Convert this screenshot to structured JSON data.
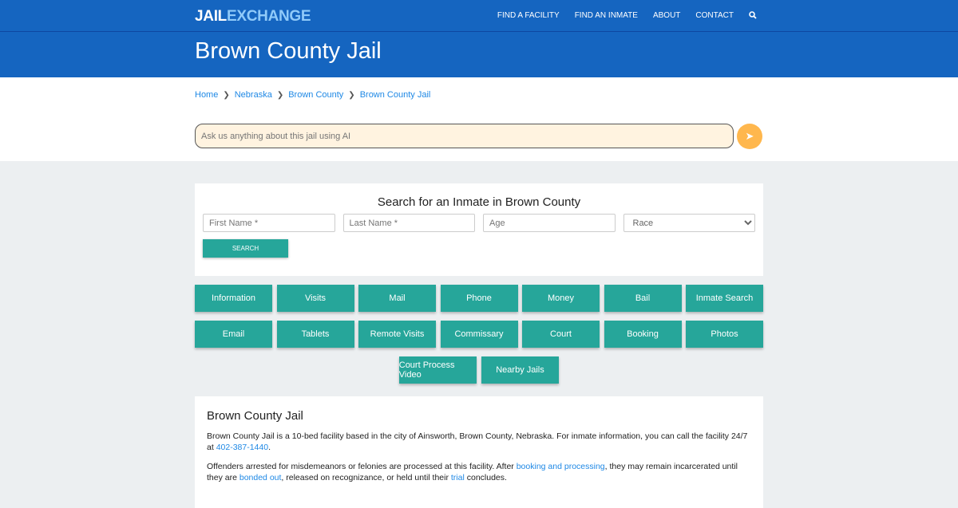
{
  "nav": {
    "logo_a": "JAIL",
    "logo_b": "EXCHANGE",
    "items": [
      "FIND A FACILITY",
      "FIND AN INMATE",
      "ABOUT",
      "CONTACT"
    ],
    "search_icon": "search-icon"
  },
  "hero": {
    "title": "Brown County Jail"
  },
  "breadcrumb": [
    "Home",
    "Nebraska",
    "Brown County",
    "Brown County Jail"
  ],
  "ai": {
    "placeholder": "Ask us anything about this jail using AI",
    "send_icon": "paper-plane-icon"
  },
  "search": {
    "title": "Search for an Inmate in Brown County",
    "first": "First Name *",
    "last": "Last Name *",
    "age": "Age",
    "race": "Race",
    "button": "SEARCH"
  },
  "buttons": {
    "row1": [
      "Information",
      "Visits",
      "Mail",
      "Phone",
      "Money",
      "Bail",
      "Inmate Search"
    ],
    "row2": [
      "Email",
      "Tablets",
      "Remote Visits",
      "Commissary",
      "Court",
      "Booking",
      "Photos"
    ],
    "row3": [
      "Court Process Video",
      "Nearby Jails"
    ]
  },
  "info": {
    "title": "Brown County Jail",
    "p1_text": "Brown County Jail is a 10-bed facility based in the city of Ainsworth, Brown County, Nebraska. For inmate information, you can call the facility 24/7 at ",
    "p1_link": "402-387-1440",
    "p1_end": ".",
    "p2_a": "Offenders arrested for misdemeanors or felonies are processed at this facility. After ",
    "p2_link1": "booking and processing",
    "p2_b": ", they may remain incarcerated until they are ",
    "p2_link2": "bonded out",
    "p2_c": ", released on recognizance, or held until their ",
    "p2_link3": "trial",
    "p2_d": " concludes."
  },
  "colors": {
    "primary": "#1565c0",
    "accent": "#26a69a",
    "send": "#ffb74d",
    "link": "#1e88e5"
  }
}
